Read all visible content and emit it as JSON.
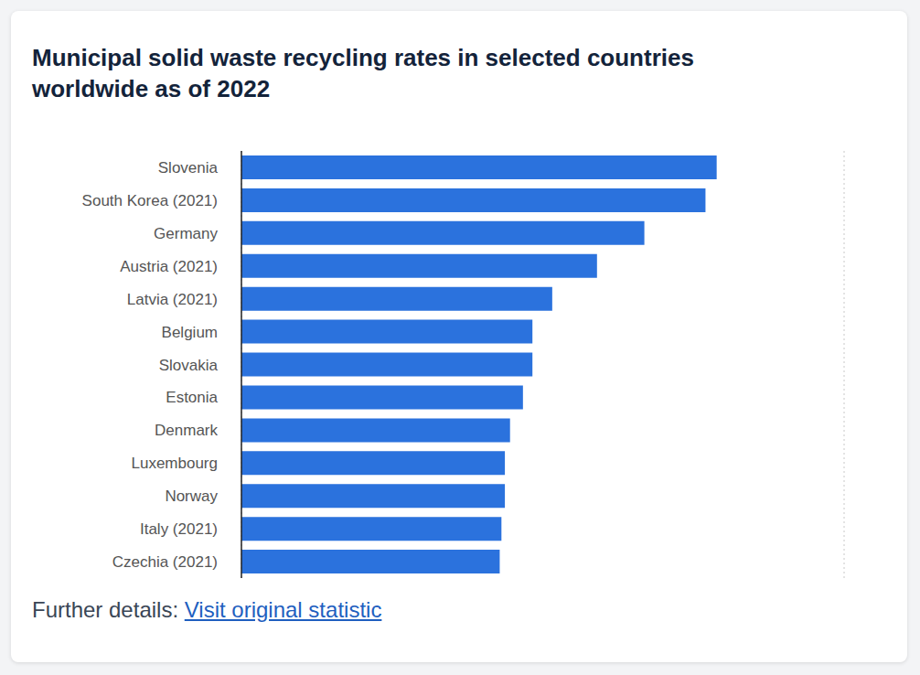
{
  "chart_data": {
    "type": "bar",
    "orientation": "horizontal",
    "title": "Municipal solid waste recycling rates in selected countries worldwide as of 2022",
    "categories": [
      "Slovenia",
      "South Korea (2021)",
      "Germany",
      "Austria (2021)",
      "Latvia (2021)",
      "Belgium",
      "Slovakia",
      "Estonia",
      "Denmark",
      "Luxembourg",
      "Norway",
      "Italy (2021)",
      "Czechia (2021)"
    ],
    "values": [
      55.2,
      53.9,
      46.8,
      41.3,
      36.1,
      33.8,
      33.8,
      32.7,
      31.2,
      30.6,
      30.6,
      30.2,
      30.0
    ],
    "color": "#2b72dd",
    "xlim": [
      0,
      70
    ],
    "xticks": [
      0,
      10,
      20,
      30,
      40,
      50,
      60,
      70
    ],
    "grid": true,
    "tick_labels": "y"
  },
  "footer": {
    "text": "Further details:",
    "link": "Visit original statistic"
  }
}
